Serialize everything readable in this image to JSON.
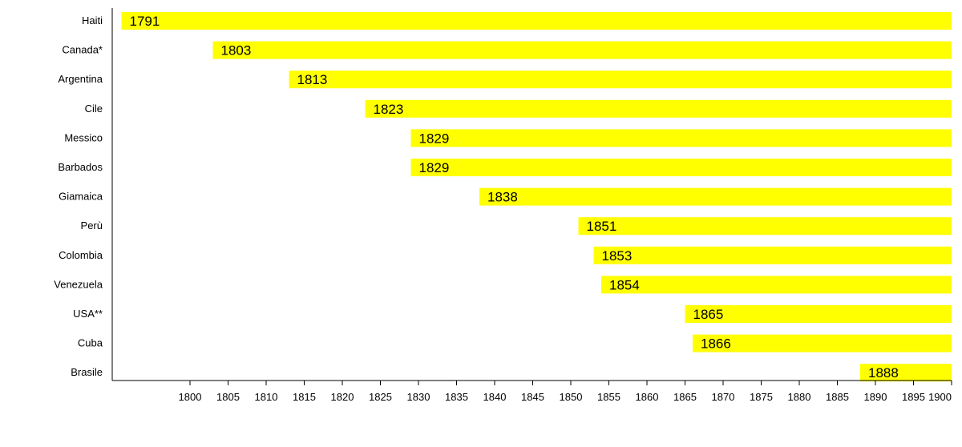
{
  "chart_data": {
    "type": "bar",
    "orientation": "horizontal",
    "categories": [
      "Haiti",
      "Canada*",
      "Argentina",
      "Cile",
      "Messico",
      "Barbados",
      "Giamaica",
      "Perù",
      "Colombia",
      "Venezuela",
      "USA**",
      "Cuba",
      "Brasile"
    ],
    "series": [
      {
        "start": [
          1791,
          1803,
          1813,
          1823,
          1829,
          1829,
          1838,
          1851,
          1853,
          1854,
          1865,
          1866,
          1888
        ],
        "end": [
          1900,
          1900,
          1900,
          1900,
          1900,
          1900,
          1900,
          1900,
          1900,
          1900,
          1900,
          1900,
          1900
        ],
        "labels": [
          "1791",
          "1803",
          "1813",
          "1823",
          "1829",
          "1829",
          "1838",
          "1851",
          "1853",
          "1854",
          "1865",
          "1866",
          "1888"
        ]
      }
    ],
    "x_ticks": [
      "1800",
      "1805",
      "1810",
      "1815",
      "1820",
      "1825",
      "1830",
      "1835",
      "1840",
      "1845",
      "1850",
      "1855",
      "1860",
      "1865",
      "1870",
      "1875",
      "1880",
      "1885",
      "1890",
      "1895",
      "1900"
    ],
    "xlim": [
      1791,
      1900
    ],
    "title": "",
    "xlabel": "",
    "ylabel": "",
    "grid": false,
    "legend": "none",
    "colors": {
      "bar": "#ffff00",
      "axis": "#000000",
      "text": "#000000"
    }
  }
}
